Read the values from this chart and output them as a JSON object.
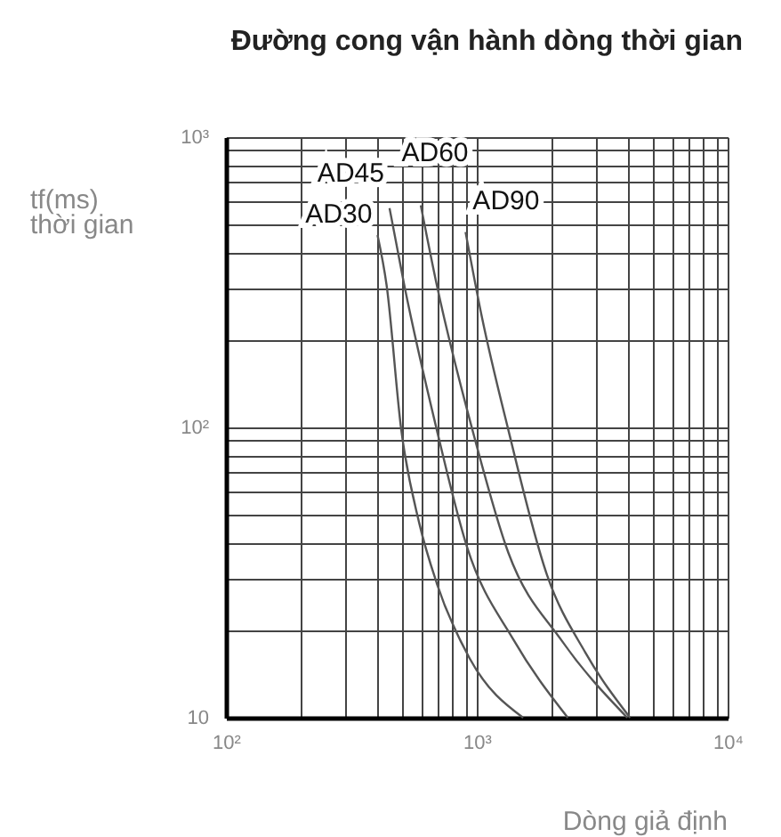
{
  "chart_data": {
    "type": "line",
    "title": "Đường cong vận hành dòng thời gian",
    "xlabel": "Dòng giả định",
    "ylabel": "tf(ms)\nthời gian",
    "log": "xy",
    "grid": true,
    "line_style": "solid",
    "marker": "none",
    "legend": false,
    "xlim": [
      100,
      10000
    ],
    "ylim": [
      10,
      1000
    ],
    "xticks": [
      {
        "value": 100,
        "label": "10²"
      },
      {
        "value": 200,
        "label": null
      },
      {
        "value": 300,
        "label": null
      },
      {
        "value": 400,
        "label": null
      },
      {
        "value": 500,
        "label": null
      },
      {
        "value": 600,
        "label": null
      },
      {
        "value": 700,
        "label": null
      },
      {
        "value": 800,
        "label": null
      },
      {
        "value": 900,
        "label": null
      },
      {
        "value": 1000,
        "label": "10³"
      },
      {
        "value": 2000,
        "label": null
      },
      {
        "value": 3000,
        "label": null
      },
      {
        "value": 4000,
        "label": null
      },
      {
        "value": 5000,
        "label": null
      },
      {
        "value": 6000,
        "label": null
      },
      {
        "value": 7000,
        "label": null
      },
      {
        "value": 8000,
        "label": null
      },
      {
        "value": 9000,
        "label": null
      },
      {
        "value": 10000,
        "label": "10⁴"
      }
    ],
    "yticks": [
      10,
      {
        "value": 20,
        "label": null
      },
      {
        "value": 30,
        "label": null
      },
      {
        "value": 40,
        "label": null
      },
      {
        "value": 50,
        "label": null
      },
      {
        "value": 60,
        "label": null
      },
      {
        "value": 70,
        "label": null
      },
      {
        "value": 80,
        "label": null
      },
      {
        "value": 90,
        "label": null
      },
      {
        "value": 100,
        "label": "10²"
      },
      {
        "value": 200,
        "label": null
      },
      {
        "value": 300,
        "label": null
      },
      {
        "value": 400,
        "label": null
      },
      {
        "value": 500,
        "label": null
      },
      {
        "value": 600,
        "label": null
      },
      {
        "value": 700,
        "label": null
      },
      {
        "value": 800,
        "label": null
      },
      {
        "value": 900,
        "label": null
      },
      {
        "value": 1000,
        "label": "10³"
      }
    ],
    "series": [
      {
        "name": "AD30",
        "color": "#555555",
        "x": [
          402,
          437,
          500,
          589,
          693,
          937,
          1530
        ],
        "values": [
          460,
          309,
          98,
          47,
          29,
          16,
          10
        ]
      },
      {
        "name": "AD45",
        "color": "#555555",
        "x": [
          449,
          514,
          693,
          912,
          1409,
          2306
        ],
        "values": [
          569,
          309,
          98,
          39,
          18.4,
          10
        ]
      },
      {
        "name": "AD60",
        "color": "#555555",
        "x": [
          598,
          693,
          961,
          1336,
          2183,
          3981
        ],
        "values": [
          582,
          309,
          98,
          37,
          18.4,
          10
        ]
      },
      {
        "name": "AD90",
        "color": "#555555",
        "x": [
          902,
          1044,
          1336,
          1906,
          2716,
          4084
        ],
        "values": [
          471,
          244,
          98,
          31,
          16.7,
          10
        ]
      }
    ]
  }
}
